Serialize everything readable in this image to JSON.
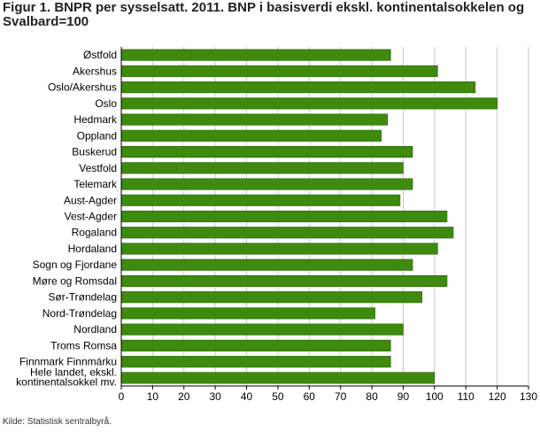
{
  "header": {
    "title": "Figur 1. BNPR per sysselsatt. 2011. BNP i basisverdi ekskl. kontinentalsokkelen og Svalbard=100"
  },
  "footer": {
    "source": "Kilde: Statistisk sentralbyrå."
  },
  "colors": {
    "bar_fill": "#3d8a0e",
    "bar_stroke": "#2a6508",
    "grid": "#c8c8c8",
    "axis": "#000000"
  },
  "chart_data": {
    "type": "bar",
    "orientation": "horizontal",
    "title": "Figur 1. BNPR per sysselsatt. 2011. BNP i basisverdi ekskl. kontinentalsokkelen og Svalbard=100",
    "xlabel": "",
    "ylabel": "",
    "xlim": [
      0,
      130
    ],
    "xticks": [
      0,
      10,
      20,
      30,
      40,
      50,
      60,
      70,
      80,
      90,
      100,
      110,
      120,
      130
    ],
    "grid": true,
    "categories": [
      "Østfold",
      "Akershus",
      "Oslo/Akershus",
      "Oslo",
      "Hedmark",
      "Oppland",
      "Buskerud",
      "Vestfold",
      "Telemark",
      "Aust-Agder",
      "Vest-Agder",
      "Rogaland",
      "Hordaland",
      "Sogn og Fjordane",
      "Møre og Romsdal",
      "Sør-Trøndelag",
      "Nord-Trøndelag",
      "Nordland",
      "Troms Romsa",
      "Finnmark Finnmárku",
      [
        "Hele landet, ekskl.",
        "kontinentalsokkel mv."
      ]
    ],
    "values": [
      86,
      101,
      113,
      120,
      85,
      83,
      93,
      90,
      93,
      89,
      104,
      106,
      101,
      93,
      104,
      96,
      81,
      90,
      86,
      86,
      100
    ]
  }
}
